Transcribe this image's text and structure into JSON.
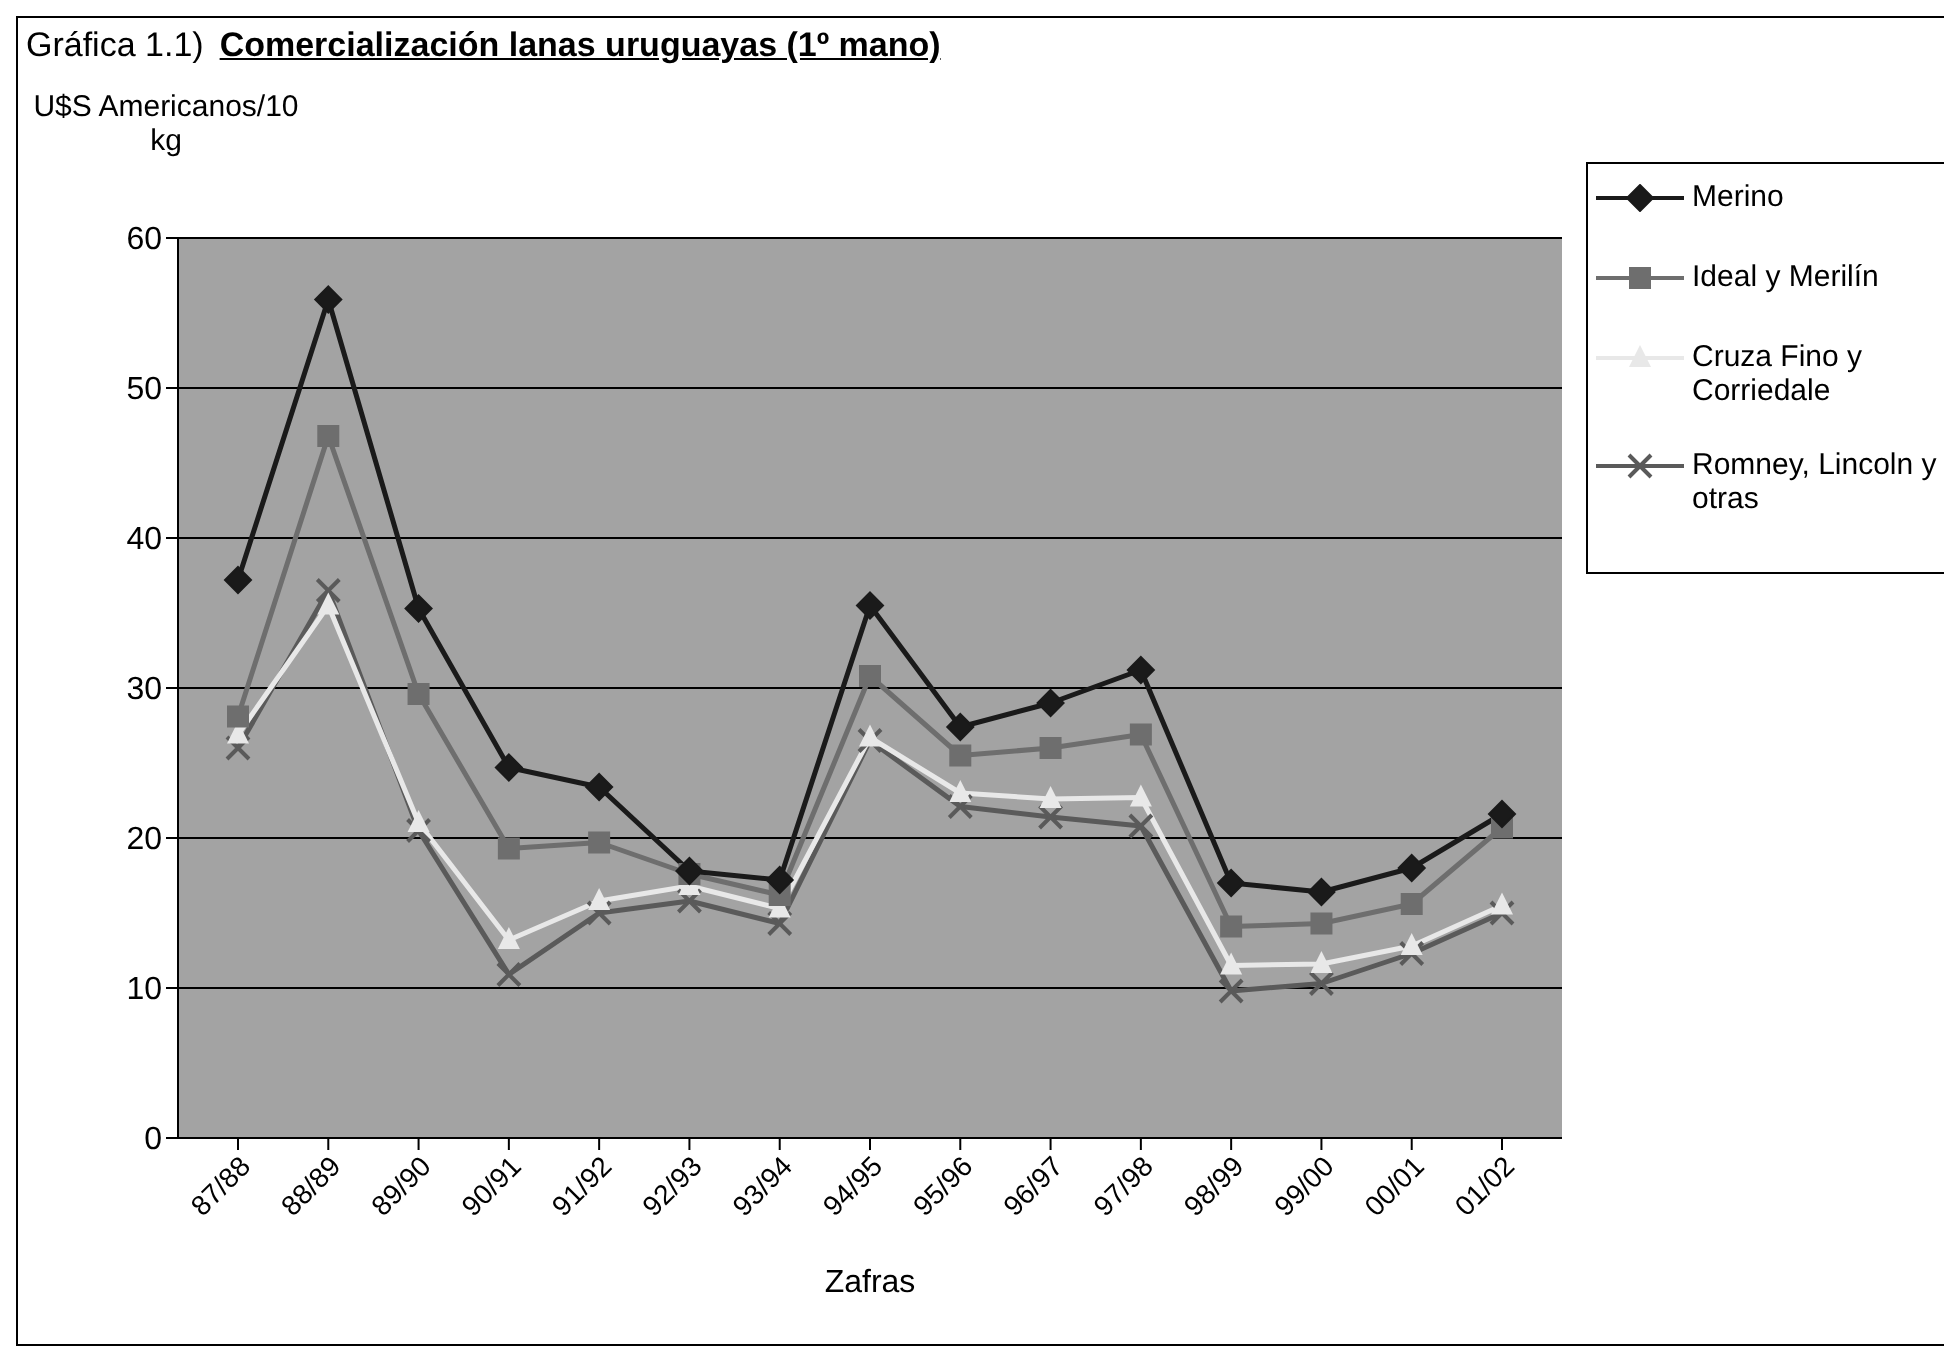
{
  "chart_data": {
    "type": "line",
    "title": "Comercialización lanas uruguayas (1º mano)",
    "annotations": [
      "Gráfica 1.1)"
    ],
    "ylabel": "U$S Americanos/10 kg",
    "xlabel": "Zafras",
    "categories": [
      "87/88",
      "88/89",
      "89/90",
      "90/91",
      "91/92",
      "92/93",
      "93/94",
      "94/95",
      "95/96",
      "96/97",
      "97/98",
      "98/99",
      "99/00",
      "00/01",
      "01/02"
    ],
    "series": [
      {
        "name": "Merino",
        "color": "#1a1a1a",
        "marker": "diamond",
        "values": [
          37.2,
          55.9,
          35.3,
          24.7,
          23.4,
          17.8,
          17.2,
          35.5,
          27.4,
          29.0,
          31.2,
          17.0,
          16.4,
          18.0,
          21.6
        ]
      },
      {
        "name": "Ideal y Merilín",
        "color": "#6e6e6e",
        "marker": "square",
        "values": [
          28.1,
          46.8,
          29.6,
          19.3,
          19.7,
          17.6,
          16.2,
          30.8,
          25.5,
          26.0,
          26.9,
          14.1,
          14.3,
          15.6,
          20.7
        ]
      },
      {
        "name": "Cruza Fino y Corriedale",
        "color": "#e8e8e8",
        "marker": "triangle",
        "values": [
          26.9,
          35.5,
          21.0,
          13.2,
          15.8,
          16.8,
          15.3,
          26.7,
          23.0,
          22.6,
          22.7,
          11.5,
          11.6,
          12.8,
          15.5
        ]
      },
      {
        "name": "Romney, Lincoln y otras",
        "color": "#5a5a5a",
        "marker": "cross",
        "values": [
          26.0,
          36.5,
          20.5,
          10.9,
          15.0,
          15.8,
          14.3,
          26.5,
          22.1,
          21.4,
          20.8,
          9.8,
          10.3,
          12.3,
          15.0
        ]
      }
    ],
    "ylim": [
      0,
      60
    ],
    "yticks": [
      0,
      10,
      20,
      30,
      40,
      50,
      60
    ],
    "grid": "y",
    "legend": "top right",
    "line_style": "solid"
  }
}
